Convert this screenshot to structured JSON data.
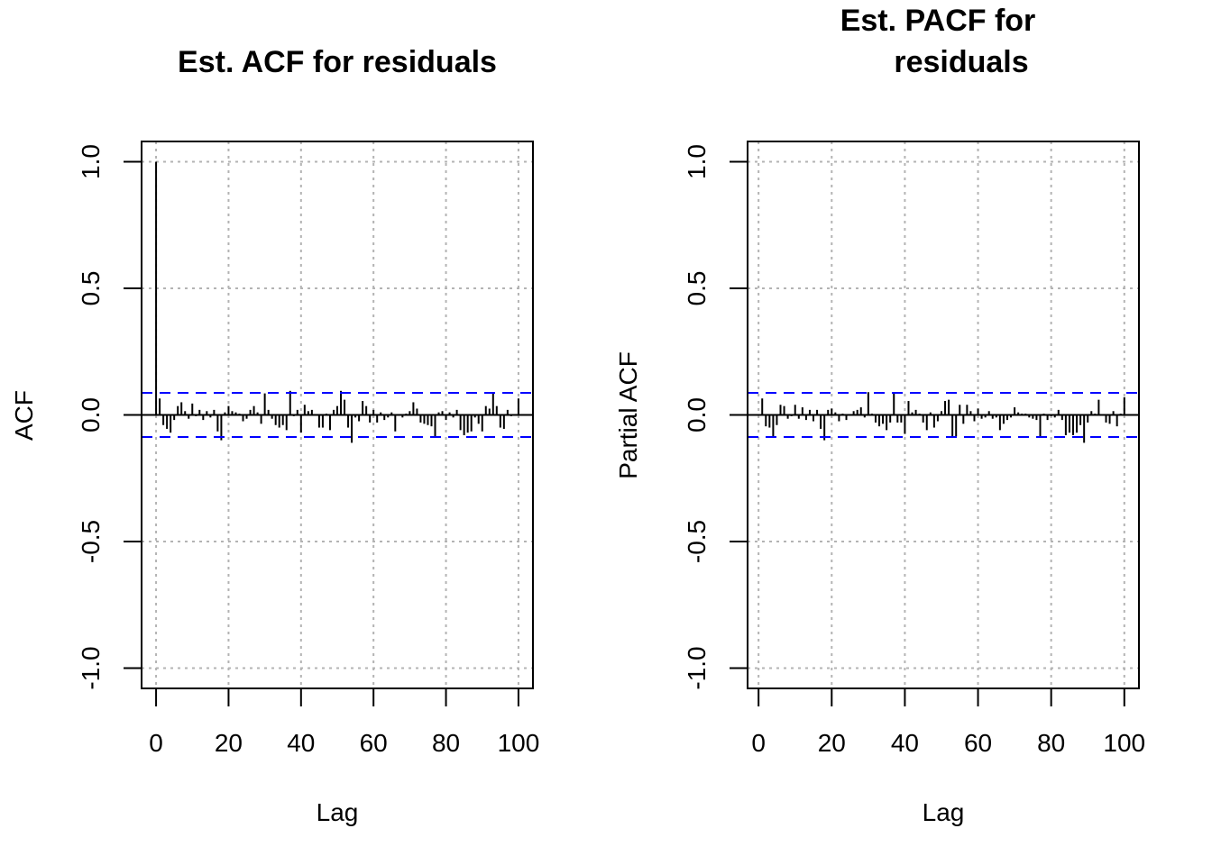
{
  "chart_data": [
    {
      "type": "bar",
      "title_lines": [
        "Est. ACF for residuals"
      ],
      "xlabel": "Lag",
      "ylabel": "ACF",
      "xlim": [
        -4,
        104
      ],
      "ylim": [
        -1.08,
        1.08
      ],
      "x_ticks": [
        0,
        20,
        40,
        60,
        80,
        100
      ],
      "y_ticks": [
        -1.0,
        -0.5,
        0.0,
        0.5,
        1.0
      ],
      "x_tick_labels": [
        "0",
        "20",
        "40",
        "60",
        "80",
        "100"
      ],
      "y_tick_labels": [
        "-1.0",
        "-0.5",
        "0.0",
        "0.5",
        "1.0"
      ],
      "grid": true,
      "confidence_bound": 0.087,
      "bound_color": "#0000ff",
      "x": [
        0,
        1,
        2,
        3,
        4,
        5,
        6,
        7,
        8,
        9,
        10,
        11,
        12,
        13,
        14,
        15,
        16,
        17,
        18,
        19,
        20,
        21,
        22,
        23,
        24,
        25,
        26,
        27,
        28,
        29,
        30,
        31,
        32,
        33,
        34,
        35,
        36,
        37,
        38,
        39,
        40,
        41,
        42,
        43,
        44,
        45,
        46,
        47,
        48,
        49,
        50,
        51,
        52,
        53,
        54,
        55,
        56,
        57,
        58,
        59,
        60,
        61,
        62,
        63,
        64,
        65,
        66,
        67,
        68,
        69,
        70,
        71,
        72,
        73,
        74,
        75,
        76,
        77,
        78,
        79,
        80,
        81,
        82,
        83,
        84,
        85,
        86,
        87,
        88,
        89,
        90,
        91,
        92,
        93,
        94,
        95,
        96,
        97,
        98,
        99,
        100
      ],
      "values": [
        1.0,
        0.065,
        -0.04,
        -0.055,
        -0.07,
        -0.02,
        0.035,
        0.05,
        0.015,
        -0.015,
        0.045,
        -0.005,
        0.02,
        -0.02,
        0.015,
        -0.01,
        0.02,
        -0.065,
        -0.1,
        0.01,
        0.035,
        0.015,
        0.01,
        0.005,
        -0.025,
        -0.015,
        0.02,
        0.035,
        0.01,
        -0.035,
        0.085,
        0.02,
        -0.015,
        -0.04,
        -0.05,
        -0.04,
        -0.06,
        0.095,
        -0.005,
        0.02,
        -0.07,
        0.04,
        0.015,
        0.02,
        0.0,
        -0.05,
        -0.05,
        0.005,
        -0.06,
        0.02,
        0.035,
        0.095,
        0.06,
        -0.05,
        -0.11,
        -0.01,
        -0.025,
        0.055,
        0.035,
        -0.03,
        0.02,
        -0.03,
        0.01,
        -0.02,
        -0.01,
        0.01,
        -0.065,
        0.0,
        -0.01,
        0.005,
        0.015,
        0.05,
        0.025,
        -0.03,
        -0.035,
        -0.04,
        -0.045,
        -0.09,
        0.01,
        0.015,
        -0.02,
        0.01,
        -0.01,
        0.02,
        -0.06,
        -0.08,
        -0.07,
        -0.065,
        -0.01,
        -0.035,
        -0.065,
        0.035,
        0.025,
        0.09,
        0.035,
        -0.05,
        -0.055,
        0.02,
        -0.005,
        0.0,
        0.065
      ]
    },
    {
      "type": "bar",
      "title_lines": [
        "Est. PACF for",
        "residuals"
      ],
      "xlabel": "Lag",
      "ylabel": "Partial ACF",
      "xlim": [
        -3,
        104
      ],
      "ylim": [
        -1.08,
        1.08
      ],
      "x_ticks": [
        0,
        20,
        40,
        60,
        80,
        100
      ],
      "y_ticks": [
        -1.0,
        -0.5,
        0.0,
        0.5,
        1.0
      ],
      "x_tick_labels": [
        "0",
        "20",
        "40",
        "60",
        "80",
        "100"
      ],
      "y_tick_labels": [
        "-1.0",
        "-0.5",
        "0.0",
        "0.5",
        "1.0"
      ],
      "grid": true,
      "confidence_bound": 0.087,
      "bound_color": "#0000ff",
      "x": [
        1,
        2,
        3,
        4,
        5,
        6,
        7,
        8,
        9,
        10,
        11,
        12,
        13,
        14,
        15,
        16,
        17,
        18,
        19,
        20,
        21,
        22,
        23,
        24,
        25,
        26,
        27,
        28,
        29,
        30,
        31,
        32,
        33,
        34,
        35,
        36,
        37,
        38,
        39,
        40,
        41,
        42,
        43,
        44,
        45,
        46,
        47,
        48,
        49,
        50,
        51,
        52,
        53,
        54,
        55,
        56,
        57,
        58,
        59,
        60,
        61,
        62,
        63,
        64,
        65,
        66,
        67,
        68,
        69,
        70,
        71,
        72,
        73,
        74,
        75,
        76,
        77,
        78,
        79,
        80,
        81,
        82,
        83,
        84,
        85,
        86,
        87,
        88,
        89,
        90,
        91,
        92,
        93,
        94,
        95,
        96,
        97,
        98,
        99,
        100
      ],
      "values": [
        0.065,
        -0.045,
        -0.05,
        -0.085,
        -0.04,
        0.04,
        0.035,
        -0.015,
        -0.005,
        0.04,
        -0.015,
        0.03,
        -0.02,
        0.02,
        -0.025,
        0.02,
        -0.055,
        -0.1,
        0.02,
        0.025,
        0.01,
        -0.025,
        0.005,
        -0.02,
        0.0,
        0.015,
        0.02,
        0.03,
        -0.01,
        0.09,
        0.005,
        -0.03,
        -0.045,
        -0.035,
        -0.06,
        -0.03,
        0.085,
        -0.03,
        -0.03,
        -0.075,
        0.055,
        0.01,
        0.02,
        0.005,
        -0.03,
        -0.06,
        0.01,
        -0.05,
        -0.025,
        0.015,
        0.055,
        0.06,
        -0.085,
        -0.085,
        0.04,
        -0.035,
        0.04,
        0.015,
        -0.025,
        0.025,
        -0.015,
        -0.01,
        0.015,
        -0.015,
        -0.01,
        -0.06,
        -0.035,
        -0.02,
        -0.01,
        0.03,
        0.01,
        0.005,
        0.005,
        -0.01,
        -0.015,
        -0.02,
        -0.085,
        0.005,
        -0.02,
        -0.005,
        -0.01,
        0.02,
        -0.02,
        -0.08,
        -0.07,
        -0.08,
        -0.07,
        -0.04,
        -0.11,
        -0.03,
        0.015,
        0.005,
        0.06,
        0.0,
        -0.03,
        -0.035,
        0.015,
        -0.045,
        0.005,
        0.07
      ]
    }
  ]
}
